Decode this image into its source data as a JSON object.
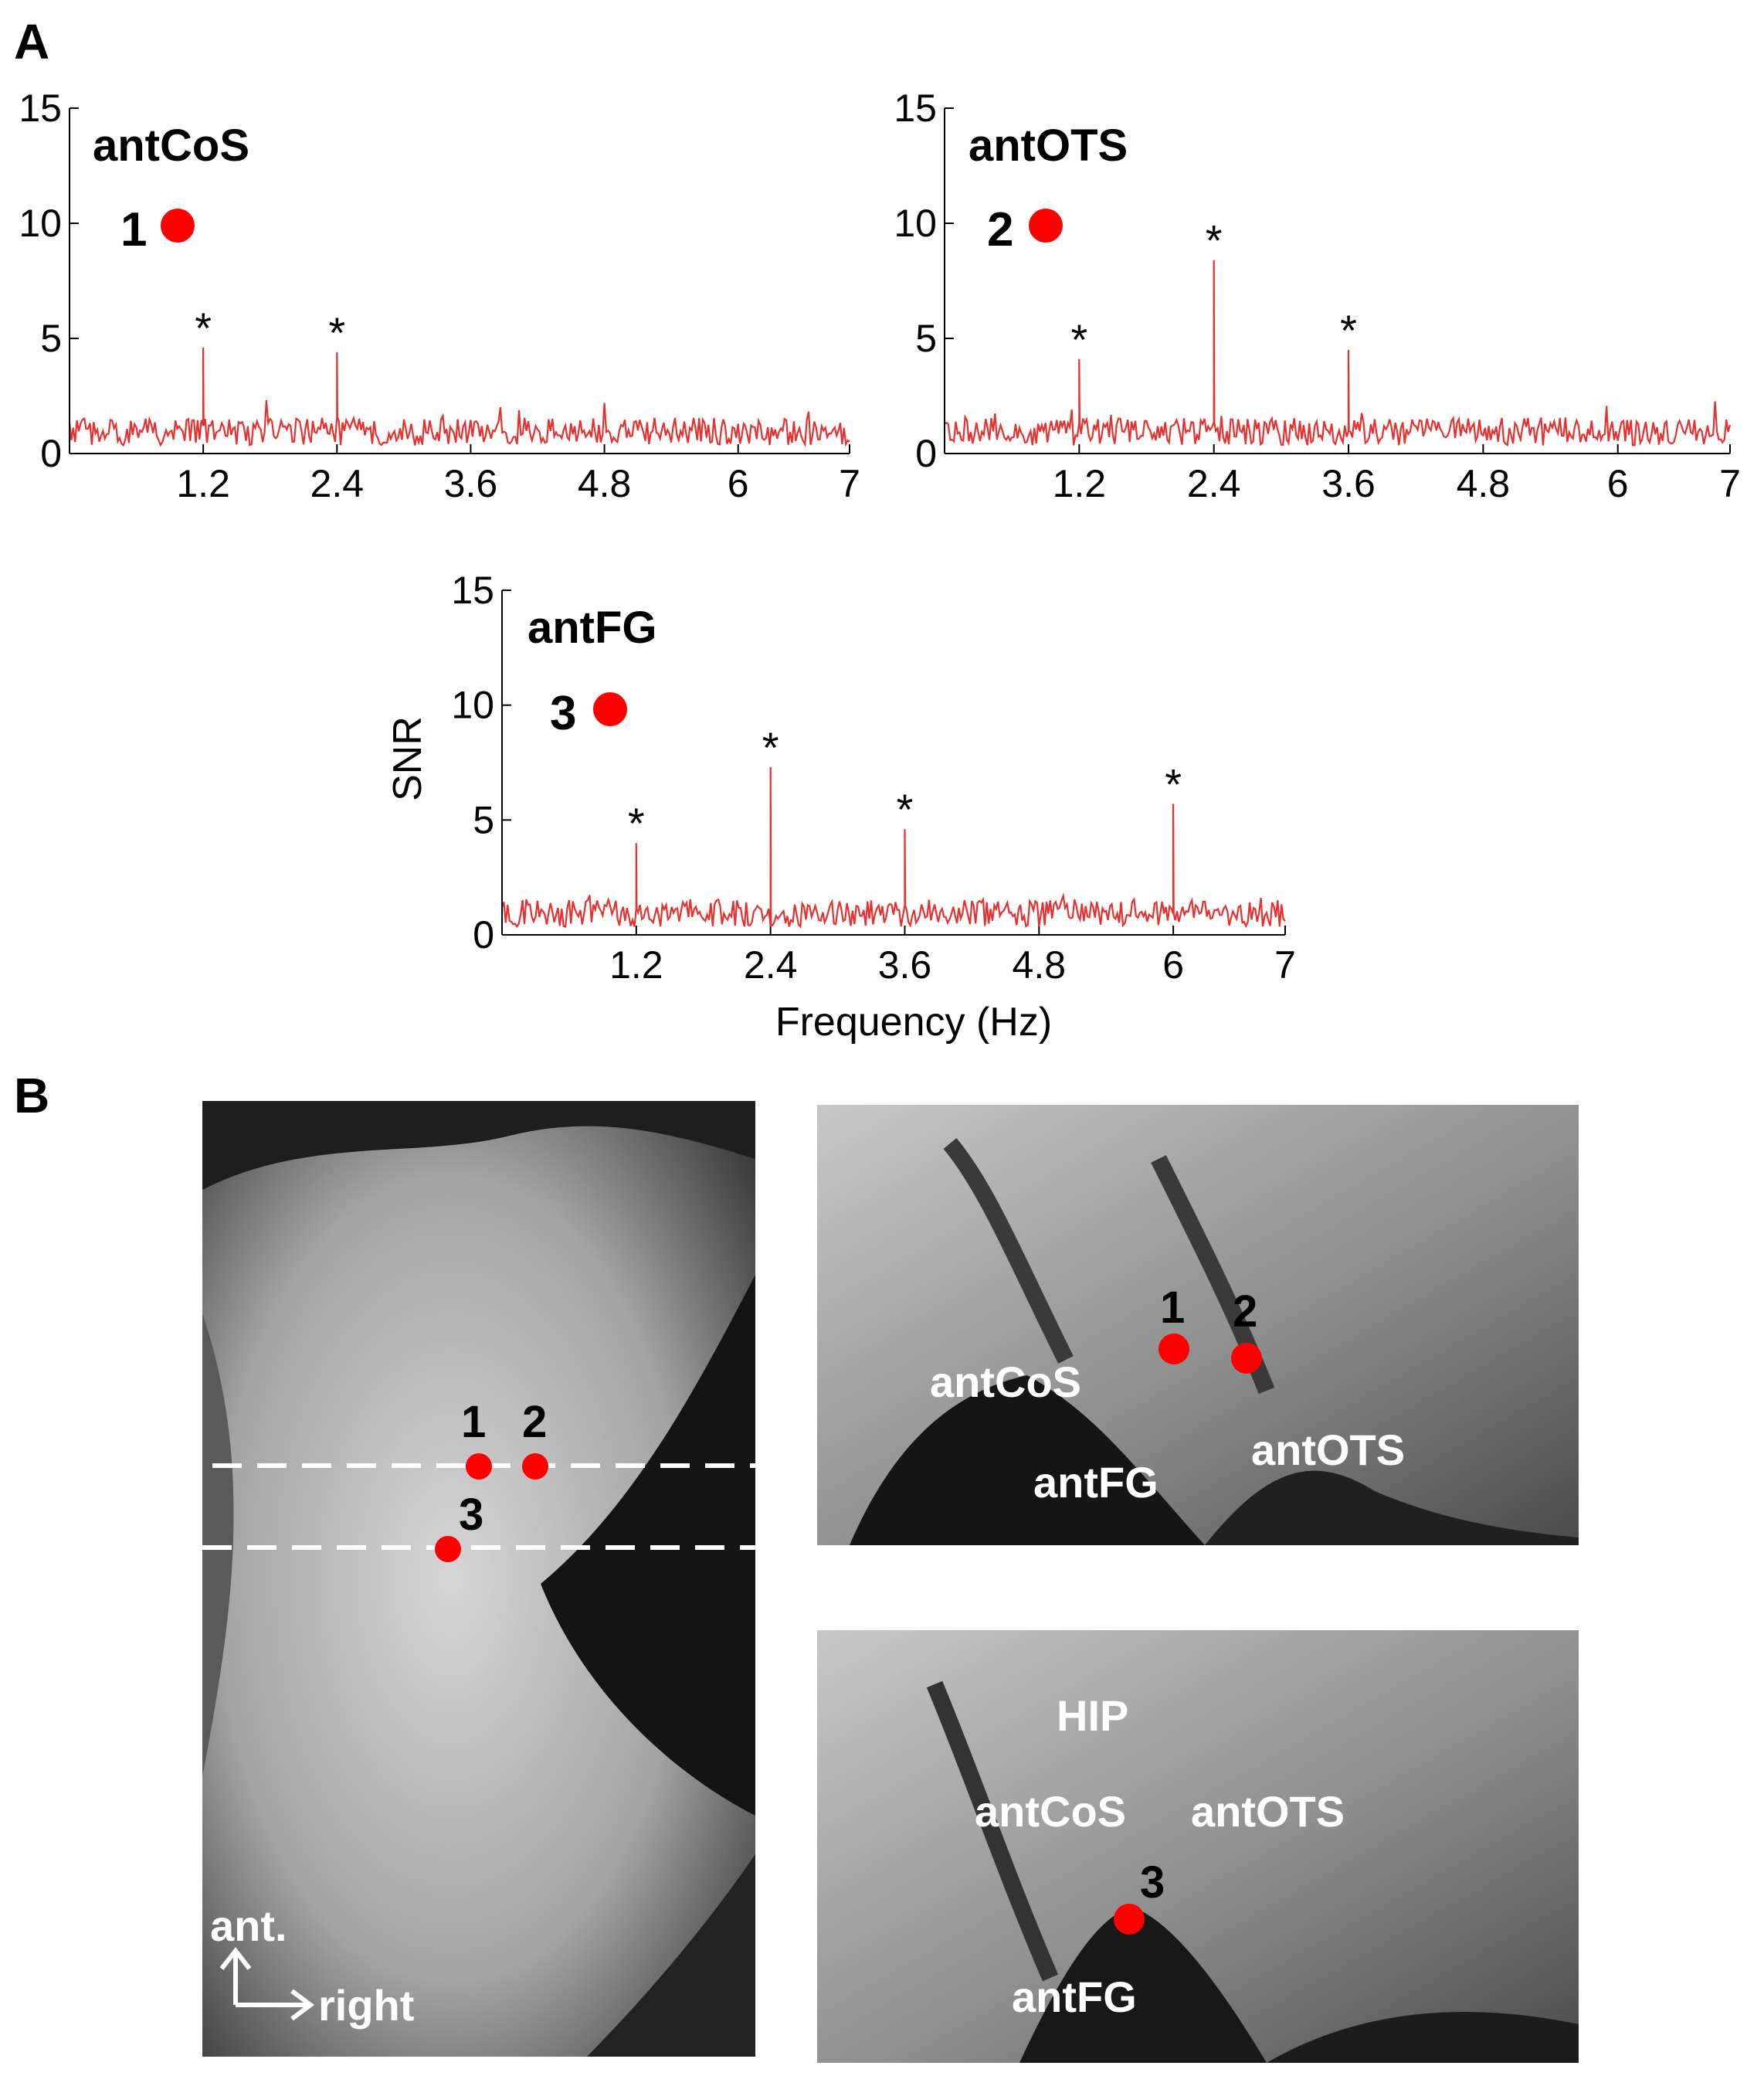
{
  "panel_labels": [
    "A",
    "B"
  ],
  "chart_data": [
    {
      "type": "line",
      "title": "antCoS",
      "marker_label": "1",
      "xlabel": "",
      "ylabel": "",
      "xlim": [
        0,
        7
      ],
      "ylim": [
        0,
        15
      ],
      "x_ticks": [
        1.2,
        2.4,
        3.6,
        4.8,
        6,
        7
      ],
      "x_tick_labels": [
        "1.2",
        "2.4",
        "3.6",
        "4.8",
        "6",
        "7"
      ],
      "y_ticks": [
        0,
        5,
        10,
        15
      ],
      "y_tick_labels": [
        "0",
        "5",
        "10",
        "15"
      ],
      "peaks": [
        {
          "x": 1.2,
          "y": 4.6,
          "label": "*"
        },
        {
          "x": 2.4,
          "y": 4.4,
          "label": "*"
        }
      ],
      "noise_level": 1.0,
      "series_color": "#e8302f"
    },
    {
      "type": "line",
      "title": "antOTS",
      "marker_label": "2",
      "xlabel": "",
      "ylabel": "",
      "xlim": [
        0,
        7
      ],
      "ylim": [
        0,
        15
      ],
      "x_ticks": [
        1.2,
        2.4,
        3.6,
        4.8,
        6,
        7
      ],
      "x_tick_labels": [
        "1.2",
        "2.4",
        "3.6",
        "4.8",
        "6",
        "7"
      ],
      "y_ticks": [
        0,
        5,
        10,
        15
      ],
      "y_tick_labels": [
        "0",
        "5",
        "10",
        "15"
      ],
      "peaks": [
        {
          "x": 1.2,
          "y": 4.1,
          "label": "*"
        },
        {
          "x": 2.4,
          "y": 8.4,
          "label": "*"
        },
        {
          "x": 3.6,
          "y": 4.5,
          "label": "*"
        }
      ],
      "noise_level": 1.0,
      "series_color": "#e8302f"
    },
    {
      "type": "line",
      "title": "antFG",
      "marker_label": "3",
      "xlabel": "Frequency (Hz)",
      "ylabel": "SNR",
      "xlim": [
        0,
        7
      ],
      "ylim": [
        0,
        15
      ],
      "x_ticks": [
        1.2,
        2.4,
        3.6,
        4.8,
        6,
        7
      ],
      "x_tick_labels": [
        "1.2",
        "2.4",
        "3.6",
        "4.8",
        "6",
        "7"
      ],
      "y_ticks": [
        0,
        5,
        10,
        15
      ],
      "y_tick_labels": [
        "0",
        "5",
        "10",
        "15"
      ],
      "peaks": [
        {
          "x": 1.2,
          "y": 4.0,
          "label": "*"
        },
        {
          "x": 2.4,
          "y": 7.3,
          "label": "*"
        },
        {
          "x": 3.6,
          "y": 4.6,
          "label": "*"
        },
        {
          "x": 6,
          "y": 5.7,
          "label": "*"
        }
      ],
      "noise_level": 1.0,
      "series_color": "#e8302f"
    }
  ],
  "mri": {
    "axial": {
      "points": [
        "1",
        "2",
        "3"
      ],
      "orient_up": "ant.",
      "orient_right": "right"
    },
    "coronal_top": {
      "points": [
        "1",
        "2"
      ],
      "labels": [
        "antCoS",
        "antFG",
        "antOTS"
      ]
    },
    "coronal_bottom": {
      "points": [
        "3"
      ],
      "labels": [
        "HIP",
        "antCoS",
        "antOTS",
        "antFG"
      ]
    }
  },
  "colors": {
    "marker": "#ff0000",
    "series": "#e8302f"
  }
}
